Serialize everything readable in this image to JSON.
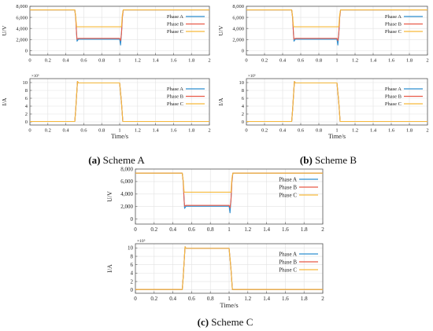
{
  "figure": {
    "captions": [
      {
        "tag": "(a)",
        "text": " Scheme A"
      },
      {
        "tag": "(b)",
        "text": " Scheme B"
      },
      {
        "tag": "(c)",
        "text": " Scheme C"
      }
    ]
  },
  "colors": {
    "phase_a": "#2f8fd0",
    "phase_b": "#e85a48",
    "phase_c": "#f6b93b",
    "frame": "#555555",
    "grid": "#e2e2e2"
  },
  "chart_data": [
    {
      "scheme": "Scheme A",
      "type": "line",
      "xlabel": "",
      "ylabel": "U/V",
      "xlim": [
        0,
        2
      ],
      "ylim": [
        -800,
        8000
      ],
      "x_ticks": [
        "0",
        "0.2",
        "0.4",
        "0.6",
        "0.8",
        "1",
        "1.2",
        "1.4",
        "1.6",
        "1.8",
        "2"
      ],
      "y_ticks": [
        "0",
        "2,000",
        "4,000",
        "6,000",
        "8,000"
      ],
      "y_tick_values": [
        0,
        2000,
        4000,
        6000,
        8000
      ],
      "multiplier": "",
      "series": [
        {
          "name": "Phase A",
          "color": "#2f8fd0",
          "points": [
            [
              0,
              7350
            ],
            [
              0.5,
              7350
            ],
            [
              0.51,
              6000
            ],
            [
              0.52,
              3000
            ],
            [
              0.525,
              1700
            ],
            [
              0.54,
              2050
            ],
            [
              1.0,
              2050
            ],
            [
              1.01,
              1000
            ],
            [
              1.02,
              3000
            ],
            [
              1.03,
              6000
            ],
            [
              1.04,
              7350
            ],
            [
              2,
              7350
            ]
          ]
        },
        {
          "name": "Phase B",
          "color": "#e85a48",
          "points": [
            [
              0,
              7350
            ],
            [
              0.5,
              7350
            ],
            [
              0.51,
              6000
            ],
            [
              0.52,
              3000
            ],
            [
              0.525,
              2050
            ],
            [
              0.54,
              2200
            ],
            [
              1.0,
              2200
            ],
            [
              1.01,
              1800
            ],
            [
              1.02,
              3000
            ],
            [
              1.03,
              6000
            ],
            [
              1.04,
              7350
            ],
            [
              2,
              7350
            ]
          ]
        },
        {
          "name": "Phase C",
          "color": "#f6b93b",
          "points": [
            [
              0,
              7350
            ],
            [
              0.5,
              7350
            ],
            [
              0.51,
              6200
            ],
            [
              0.52,
              4300
            ],
            [
              1.0,
              4300
            ],
            [
              1.02,
              4300
            ],
            [
              1.03,
              6500
            ],
            [
              1.04,
              7350
            ],
            [
              2,
              7350
            ]
          ]
        }
      ]
    },
    {
      "scheme": "Scheme A",
      "type": "line",
      "xlabel": "Time/s",
      "ylabel": "I/A",
      "xlim": [
        0,
        2
      ],
      "ylim": [
        -0.8,
        11
      ],
      "x_ticks": [
        "0",
        "0.2",
        "0.4",
        "0.6",
        "0.8",
        "1",
        "1.2",
        "1.4",
        "1.6",
        "1.8",
        "2"
      ],
      "y_ticks": [
        "0",
        "2",
        "4",
        "6",
        "8",
        "10"
      ],
      "y_tick_values": [
        0,
        2,
        4,
        6,
        8,
        10
      ],
      "multiplier": "×10⁵",
      "series": [
        {
          "name": "Phase A",
          "color": "#2f8fd0",
          "points": [
            [
              0,
              0.1
            ],
            [
              0.5,
              0.1
            ],
            [
              0.51,
              3
            ],
            [
              0.53,
              10.3
            ],
            [
              0.54,
              9.9
            ],
            [
              1.0,
              9.9
            ],
            [
              1.02,
              5
            ],
            [
              1.035,
              0.1
            ],
            [
              2,
              0.1
            ]
          ]
        },
        {
          "name": "Phase B",
          "color": "#e85a48",
          "points": [
            [
              0,
              0.1
            ],
            [
              0.5,
              0.1
            ],
            [
              0.51,
              3
            ],
            [
              0.53,
              10.3
            ],
            [
              0.54,
              9.9
            ],
            [
              1.0,
              9.9
            ],
            [
              1.02,
              5
            ],
            [
              1.035,
              0.1
            ],
            [
              2,
              0.1
            ]
          ]
        },
        {
          "name": "Phase C",
          "color": "#f6b93b",
          "points": [
            [
              0,
              0.1
            ],
            [
              0.5,
              0.1
            ],
            [
              0.51,
              3
            ],
            [
              0.53,
              10.3
            ],
            [
              0.54,
              9.9
            ],
            [
              1.0,
              9.9
            ],
            [
              1.02,
              5
            ],
            [
              1.035,
              0.1
            ],
            [
              2,
              0.1
            ]
          ]
        }
      ]
    },
    {
      "scheme": "Scheme B",
      "type": "line",
      "xlabel": "",
      "ylabel": "U/V",
      "xlim": [
        0,
        2
      ],
      "ylim": [
        -800,
        8000
      ],
      "x_ticks": [
        "0",
        "0.2",
        "0.4",
        "0.6",
        "0.8",
        "1",
        "1.2",
        "1.4",
        "1.6",
        "1.8",
        "2"
      ],
      "y_ticks": [
        "0",
        "2,000",
        "4,000",
        "6,000",
        "8,000"
      ],
      "y_tick_values": [
        0,
        2000,
        4000,
        6000,
        8000
      ],
      "multiplier": "",
      "series": [
        {
          "name": "Phase A",
          "color": "#2f8fd0",
          "points": [
            [
              0,
              7350
            ],
            [
              0.5,
              7350
            ],
            [
              0.51,
              6000
            ],
            [
              0.52,
              3000
            ],
            [
              0.525,
              1700
            ],
            [
              0.54,
              2050
            ],
            [
              1.0,
              2050
            ],
            [
              1.01,
              1000
            ],
            [
              1.02,
              3000
            ],
            [
              1.03,
              6000
            ],
            [
              1.04,
              7350
            ],
            [
              2,
              7350
            ]
          ]
        },
        {
          "name": "Phase B",
          "color": "#e85a48",
          "points": [
            [
              0,
              7350
            ],
            [
              0.5,
              7350
            ],
            [
              0.51,
              6000
            ],
            [
              0.52,
              3000
            ],
            [
              0.525,
              2050
            ],
            [
              0.54,
              2200
            ],
            [
              1.0,
              2200
            ],
            [
              1.01,
              1800
            ],
            [
              1.02,
              3000
            ],
            [
              1.03,
              6000
            ],
            [
              1.04,
              7350
            ],
            [
              2,
              7350
            ]
          ]
        },
        {
          "name": "Phase C",
          "color": "#f6b93b",
          "points": [
            [
              0,
              7350
            ],
            [
              0.5,
              7350
            ],
            [
              0.51,
              6200
            ],
            [
              0.52,
              4300
            ],
            [
              1.0,
              4300
            ],
            [
              1.02,
              4300
            ],
            [
              1.03,
              6500
            ],
            [
              1.04,
              7350
            ],
            [
              2,
              7350
            ]
          ]
        }
      ]
    },
    {
      "scheme": "Scheme B",
      "type": "line",
      "xlabel": "Time/s",
      "ylabel": "I/A",
      "xlim": [
        0,
        2
      ],
      "ylim": [
        -0.8,
        11
      ],
      "x_ticks": [
        "0",
        "0.2",
        "0.4",
        "0.6",
        "0.8",
        "1",
        "1.2",
        "1.4",
        "1.6",
        "1.8",
        "2"
      ],
      "y_ticks": [
        "0",
        "2",
        "4",
        "6",
        "8",
        "10"
      ],
      "y_tick_values": [
        0,
        2,
        4,
        6,
        8,
        10
      ],
      "multiplier": "×10⁵",
      "series": [
        {
          "name": "Phase A",
          "color": "#2f8fd0",
          "points": [
            [
              0,
              0.1
            ],
            [
              0.5,
              0.1
            ],
            [
              0.51,
              3
            ],
            [
              0.53,
              10.3
            ],
            [
              0.54,
              9.9
            ],
            [
              1.0,
              9.9
            ],
            [
              1.02,
              5
            ],
            [
              1.035,
              0.1
            ],
            [
              2,
              0.1
            ]
          ]
        },
        {
          "name": "Phase B",
          "color": "#e85a48",
          "points": [
            [
              0,
              0.1
            ],
            [
              0.5,
              0.1
            ],
            [
              0.51,
              3
            ],
            [
              0.53,
              10.3
            ],
            [
              0.54,
              9.9
            ],
            [
              1.0,
              9.9
            ],
            [
              1.02,
              5
            ],
            [
              1.035,
              0.1
            ],
            [
              2,
              0.1
            ]
          ]
        },
        {
          "name": "Phase C",
          "color": "#f6b93b",
          "points": [
            [
              0,
              0.1
            ],
            [
              0.5,
              0.1
            ],
            [
              0.51,
              3
            ],
            [
              0.53,
              10.3
            ],
            [
              0.54,
              9.9
            ],
            [
              1.0,
              9.9
            ],
            [
              1.02,
              5
            ],
            [
              1.035,
              0.1
            ],
            [
              2,
              0.1
            ]
          ]
        }
      ]
    },
    {
      "scheme": "Scheme C",
      "type": "line",
      "xlabel": "",
      "ylabel": "U/V",
      "xlim": [
        0,
        2
      ],
      "ylim": [
        -800,
        8000
      ],
      "x_ticks": [
        "0",
        "0.2",
        "0.4",
        "0.6",
        "0.8",
        "1",
        "1.2",
        "1.4",
        "1.6",
        "1.8",
        "2"
      ],
      "y_ticks": [
        "0",
        "2,000",
        "4,000",
        "6,000",
        "8,000"
      ],
      "y_tick_values": [
        0,
        2000,
        4000,
        6000,
        8000
      ],
      "multiplier": "",
      "series": [
        {
          "name": "Phase A",
          "color": "#2f8fd0",
          "points": [
            [
              0,
              7350
            ],
            [
              0.5,
              7350
            ],
            [
              0.51,
              6000
            ],
            [
              0.52,
              3000
            ],
            [
              0.525,
              1700
            ],
            [
              0.54,
              2050
            ],
            [
              1.0,
              2050
            ],
            [
              1.01,
              1000
            ],
            [
              1.02,
              3000
            ],
            [
              1.03,
              6000
            ],
            [
              1.04,
              7350
            ],
            [
              2,
              7350
            ]
          ]
        },
        {
          "name": "Phase B",
          "color": "#e85a48",
          "points": [
            [
              0,
              7350
            ],
            [
              0.5,
              7350
            ],
            [
              0.51,
              6000
            ],
            [
              0.52,
              3000
            ],
            [
              0.525,
              2050
            ],
            [
              0.54,
              2200
            ],
            [
              1.0,
              2200
            ],
            [
              1.01,
              1800
            ],
            [
              1.02,
              3000
            ],
            [
              1.03,
              6000
            ],
            [
              1.04,
              7350
            ],
            [
              2,
              7350
            ]
          ]
        },
        {
          "name": "Phase C",
          "color": "#f6b93b",
          "points": [
            [
              0,
              7350
            ],
            [
              0.5,
              7350
            ],
            [
              0.51,
              6200
            ],
            [
              0.52,
              4300
            ],
            [
              1.0,
              4300
            ],
            [
              1.02,
              4300
            ],
            [
              1.03,
              6500
            ],
            [
              1.04,
              7350
            ],
            [
              2,
              7350
            ]
          ]
        }
      ]
    },
    {
      "scheme": "Scheme C",
      "type": "line",
      "xlabel": "Time/s",
      "ylabel": "I/A",
      "xlim": [
        0,
        2
      ],
      "ylim": [
        -0.8,
        11
      ],
      "x_ticks": [
        "0",
        "0.2",
        "0.4",
        "0.6",
        "0.8",
        "1",
        "1.2",
        "1.4",
        "1.6",
        "1.8",
        "2"
      ],
      "y_ticks": [
        "0",
        "2",
        "4",
        "6",
        "8",
        "10"
      ],
      "y_tick_values": [
        0,
        2,
        4,
        6,
        8,
        10
      ],
      "multiplier": "×10⁵",
      "series": [
        {
          "name": "Phase A",
          "color": "#2f8fd0",
          "points": [
            [
              0,
              0.1
            ],
            [
              0.5,
              0.1
            ],
            [
              0.51,
              3
            ],
            [
              0.53,
              10.3
            ],
            [
              0.54,
              9.9
            ],
            [
              1.0,
              9.9
            ],
            [
              1.02,
              5
            ],
            [
              1.035,
              0.1
            ],
            [
              2,
              0.1
            ]
          ]
        },
        {
          "name": "Phase B",
          "color": "#e85a48",
          "points": [
            [
              0,
              0.1
            ],
            [
              0.5,
              0.1
            ],
            [
              0.51,
              3
            ],
            [
              0.53,
              10.3
            ],
            [
              0.54,
              9.9
            ],
            [
              1.0,
              9.9
            ],
            [
              1.02,
              5
            ],
            [
              1.035,
              0.1
            ],
            [
              2,
              0.1
            ]
          ]
        },
        {
          "name": "Phase C",
          "color": "#f6b93b",
          "points": [
            [
              0,
              0.1
            ],
            [
              0.5,
              0.1
            ],
            [
              0.51,
              3
            ],
            [
              0.53,
              10.3
            ],
            [
              0.54,
              9.9
            ],
            [
              1.0,
              9.9
            ],
            [
              1.02,
              5
            ],
            [
              1.035,
              0.1
            ],
            [
              2,
              0.1
            ]
          ]
        }
      ]
    }
  ]
}
